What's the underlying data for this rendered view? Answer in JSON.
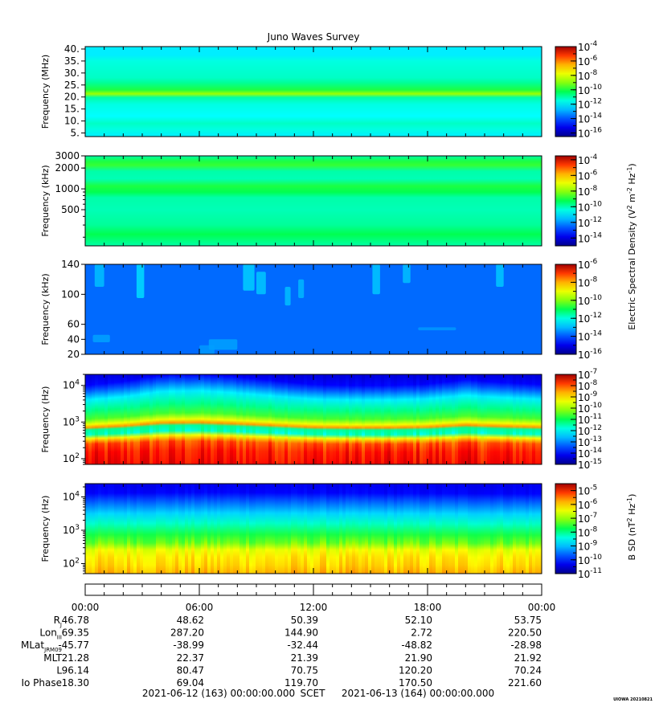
{
  "title": "Juno Waves Survey",
  "credit": "UIOWA 20210821",
  "colors": {
    "background": "#ffffff"
  },
  "colorbar_labels": {
    "electric": [
      "Electric Spectral Density (V",
      "2",
      " m",
      "-2",
      " Hz",
      "-1",
      ")"
    ],
    "magnetic": [
      "B SD (nT",
      "2",
      " Hz",
      "-1",
      ")"
    ]
  },
  "chart_data": [
    {
      "type": "heatmap",
      "id": "p1",
      "ylabel": "Frequency (MHz)",
      "yscale": "linear",
      "ylim": [
        3.5,
        41
      ],
      "yticks": [
        {
          "v": 40,
          "label": "40."
        },
        {
          "v": 35,
          "label": "35."
        },
        {
          "v": 30,
          "label": "30."
        },
        {
          "v": 25,
          "label": "25."
        },
        {
          "v": 20,
          "label": "20."
        },
        {
          "v": 15,
          "label": "15."
        },
        {
          "v": 10,
          "label": "10."
        },
        {
          "v": 5,
          "label": "5."
        }
      ],
      "colorbar": {
        "min_exp": -16.5,
        "max_exp": -4,
        "label_exps": [
          -4,
          -6,
          -8,
          -10,
          -12,
          -14,
          -16
        ],
        "minor_step": 1
      },
      "bands": [
        {
          "f": 41.0,
          "level": 0.36
        },
        {
          "f": 37.5,
          "level": 0.36
        },
        {
          "f": 35.0,
          "level": 0.4
        },
        {
          "f": 28.0,
          "level": 0.42
        },
        {
          "f": 26.0,
          "level": 0.45
        },
        {
          "f": 23.0,
          "level": 0.52
        },
        {
          "f": 21.3,
          "level": 0.62
        },
        {
          "f": 19.8,
          "level": 0.44
        },
        {
          "f": 17.0,
          "level": 0.4
        },
        {
          "f": 12.0,
          "level": 0.38
        },
        {
          "f": 9.0,
          "level": 0.42
        },
        {
          "f": 6.5,
          "level": 0.4
        },
        {
          "f": 3.5,
          "level": 0.36
        }
      ]
    },
    {
      "type": "heatmap",
      "id": "p2",
      "ylabel": "Frequency (kHz)",
      "yscale": "log",
      "ylim": [
        150,
        3000
      ],
      "yticks": [
        {
          "v": 3000,
          "label": "3000"
        },
        {
          "v": 2000,
          "label": "2000"
        },
        {
          "v": 1000,
          "label": "1000"
        },
        {
          "v": 500,
          "label": "500"
        }
      ],
      "colorbar": {
        "min_exp": -15,
        "max_exp": -3.5,
        "label_exps": [
          -4,
          -6,
          -8,
          -10,
          -12,
          -14
        ],
        "minor_step": 1
      },
      "bands": [
        {
          "f": 3000,
          "level": 0.44
        },
        {
          "f": 2500,
          "level": 0.52
        },
        {
          "f": 2200,
          "level": 0.54
        },
        {
          "f": 1800,
          "level": 0.44
        },
        {
          "f": 1400,
          "level": 0.43
        },
        {
          "f": 1100,
          "level": 0.52
        },
        {
          "f": 900,
          "level": 0.5
        },
        {
          "f": 750,
          "level": 0.44
        },
        {
          "f": 500,
          "level": 0.43
        },
        {
          "f": 300,
          "level": 0.45
        },
        {
          "f": 220,
          "level": 0.5
        },
        {
          "f": 170,
          "level": 0.46
        },
        {
          "f": 150,
          "level": 0.44
        }
      ]
    },
    {
      "type": "heatmap",
      "id": "p3",
      "ylabel": "Frequency (kHz)",
      "yscale": "linear",
      "ylim": [
        20,
        140
      ],
      "yticks": [
        {
          "v": 140,
          "label": "140"
        },
        {
          "v": 100,
          "label": "100"
        },
        {
          "v": 60,
          "label": "60"
        },
        {
          "v": 40,
          "label": "40"
        },
        {
          "v": 20,
          "label": "20"
        }
      ],
      "colorbar": {
        "min_exp": -16,
        "max_exp": -6,
        "label_exps": [
          -6,
          -8,
          -10,
          -12,
          -14,
          -16
        ],
        "minor_step": 1
      },
      "bands": [
        {
          "f": 140,
          "level": 0.22
        },
        {
          "f": 20,
          "level": 0.22
        }
      ],
      "bursts": [
        {
          "t": 0.5,
          "f0": 110,
          "f1": 140,
          "w": 0.5,
          "level": 0.32
        },
        {
          "t": 2.7,
          "f0": 95,
          "f1": 140,
          "w": 0.4,
          "level": 0.36
        },
        {
          "t": 8.3,
          "f0": 105,
          "f1": 140,
          "w": 0.6,
          "level": 0.34
        },
        {
          "t": 9.0,
          "f0": 100,
          "f1": 130,
          "w": 0.5,
          "level": 0.33
        },
        {
          "t": 10.5,
          "f0": 85,
          "f1": 110,
          "w": 0.3,
          "level": 0.32
        },
        {
          "t": 11.2,
          "f0": 95,
          "f1": 120,
          "w": 0.3,
          "level": 0.31
        },
        {
          "t": 15.1,
          "f0": 100,
          "f1": 140,
          "w": 0.4,
          "level": 0.33
        },
        {
          "t": 16.7,
          "f0": 115,
          "f1": 140,
          "w": 0.4,
          "level": 0.32
        },
        {
          "t": 21.6,
          "f0": 110,
          "f1": 140,
          "w": 0.4,
          "level": 0.33
        },
        {
          "t": 6.5,
          "f0": 26,
          "f1": 40,
          "w": 1.5,
          "level": 0.28
        },
        {
          "t": 0.4,
          "f0": 36,
          "f1": 46,
          "w": 0.9,
          "level": 0.28
        },
        {
          "t": 17.5,
          "f0": 52,
          "f1": 56,
          "w": 2.0,
          "level": 0.27
        },
        {
          "t": 6.0,
          "f0": 20,
          "f1": 32,
          "w": 0.8,
          "level": 0.27
        }
      ]
    },
    {
      "type": "heatmap",
      "id": "p4",
      "ylabel": "Frequency (Hz)",
      "yscale": "log",
      "ylim": [
        70,
        20000
      ],
      "yticks": [
        {
          "v": 10000,
          "label": "10",
          "exp": "4"
        },
        {
          "v": 1000,
          "label": "10",
          "exp": "3"
        },
        {
          "v": 100,
          "label": "10",
          "exp": "2"
        }
      ],
      "colorbar": {
        "min_exp": -15,
        "max_exp": -7,
        "label_exps": [
          -7,
          -8,
          -9,
          -10,
          -11,
          -12,
          -13,
          -14,
          -15
        ],
        "minor_step": 0.5
      },
      "profile": [
        {
          "f": 20000,
          "level": 0.08
        },
        {
          "f": 10000,
          "level": 0.12
        },
        {
          "f": 7000,
          "level": 0.2
        },
        {
          "f": 4000,
          "level": 0.36
        },
        {
          "f": 2000,
          "level": 0.46
        },
        {
          "f": 1200,
          "level": 0.55
        },
        {
          "f": 850,
          "level": 0.7
        },
        {
          "f": 700,
          "level": 0.82
        },
        {
          "f": 600,
          "level": 0.45
        },
        {
          "f": 450,
          "level": 0.42
        },
        {
          "f": 350,
          "level": 0.72
        },
        {
          "f": 250,
          "level": 0.88
        },
        {
          "f": 150,
          "level": 0.92
        },
        {
          "f": 70,
          "level": 0.94
        }
      ],
      "rise": [
        {
          "t": 0,
          "v": 0
        },
        {
          "t": 2,
          "v": 0.08
        },
        {
          "t": 4,
          "v": 0.22
        },
        {
          "t": 6,
          "v": 0.24
        },
        {
          "t": 8,
          "v": 0.18
        },
        {
          "t": 10,
          "v": 0.1
        },
        {
          "t": 12,
          "v": 0.02
        },
        {
          "t": 14,
          "v": 0.0
        },
        {
          "t": 16,
          "v": 0.0
        },
        {
          "t": 18,
          "v": 0.03
        },
        {
          "t": 20,
          "v": 0.12
        },
        {
          "t": 22,
          "v": 0.06
        },
        {
          "t": 24,
          "v": 0.02
        }
      ]
    },
    {
      "type": "heatmap",
      "id": "p5",
      "ylabel": "Frequency (Hz)",
      "yscale": "log",
      "ylim": [
        50,
        25000
      ],
      "yticks": [
        {
          "v": 10000,
          "label": "10",
          "exp": "4"
        },
        {
          "v": 1000,
          "label": "10",
          "exp": "3"
        },
        {
          "v": 100,
          "label": "10",
          "exp": "2"
        }
      ],
      "colorbar": {
        "min_exp": -11,
        "max_exp": -4.5,
        "label_exps": [
          -5,
          -6,
          -7,
          -8,
          -9,
          -10,
          -11
        ],
        "minor_step": 0.5
      },
      "profile": [
        {
          "f": 25000,
          "level": 0.1
        },
        {
          "f": 12000,
          "level": 0.12
        },
        {
          "f": 7000,
          "level": 0.2
        },
        {
          "f": 3000,
          "level": 0.33
        },
        {
          "f": 1500,
          "level": 0.42
        },
        {
          "f": 700,
          "level": 0.52
        },
        {
          "f": 400,
          "level": 0.58
        },
        {
          "f": 250,
          "level": 0.7
        },
        {
          "f": 150,
          "level": 0.74
        },
        {
          "f": 90,
          "level": 0.76
        },
        {
          "f": 50,
          "level": 0.8
        }
      ],
      "rise": [
        {
          "t": 0,
          "v": 0.02
        },
        {
          "t": 6,
          "v": 0.04
        },
        {
          "t": 12,
          "v": 0.03
        },
        {
          "t": 18,
          "v": 0.02
        },
        {
          "t": 24,
          "v": 0.01
        }
      ]
    }
  ],
  "time_axis": {
    "range_hours": [
      0,
      24
    ],
    "major_hours": [
      0,
      6,
      12,
      18,
      24
    ],
    "minor_step_hours": 1,
    "tick_labels": [
      "00:00",
      "06:00",
      "12:00",
      "18:00",
      "00:00"
    ]
  },
  "ephemeris": {
    "rows": [
      {
        "label": "R",
        "sub": "J",
        "values": [
          "46.78",
          "48.62",
          "50.39",
          "52.10",
          "53.75"
        ]
      },
      {
        "label": "Lon",
        "sub": "III",
        "values": [
          "69.35",
          "287.20",
          "144.90",
          "2.72",
          "220.50"
        ]
      },
      {
        "label": "MLat",
        "sub": "JRM09",
        "values": [
          "-45.77",
          "-38.99",
          "-32.44",
          "-48.82",
          "-28.98"
        ]
      },
      {
        "label": "MLT",
        "sub": "",
        "values": [
          "21.28",
          "22.37",
          "21.39",
          "21.90",
          "21.92"
        ]
      },
      {
        "label": "L",
        "sub": "",
        "values": [
          "96.14",
          "80.47",
          "70.75",
          "120.20",
          "70.24"
        ]
      },
      {
        "label": "Io Phase",
        "sub": "",
        "values": [
          "18.30",
          "69.04",
          "119.70",
          "170.50",
          "221.60"
        ]
      }
    ]
  },
  "footer": {
    "start": "2021-06-12 (163) 00:00:00.000",
    "middle": "SCET",
    "end": "2021-06-13 (164) 00:00:00.000"
  }
}
